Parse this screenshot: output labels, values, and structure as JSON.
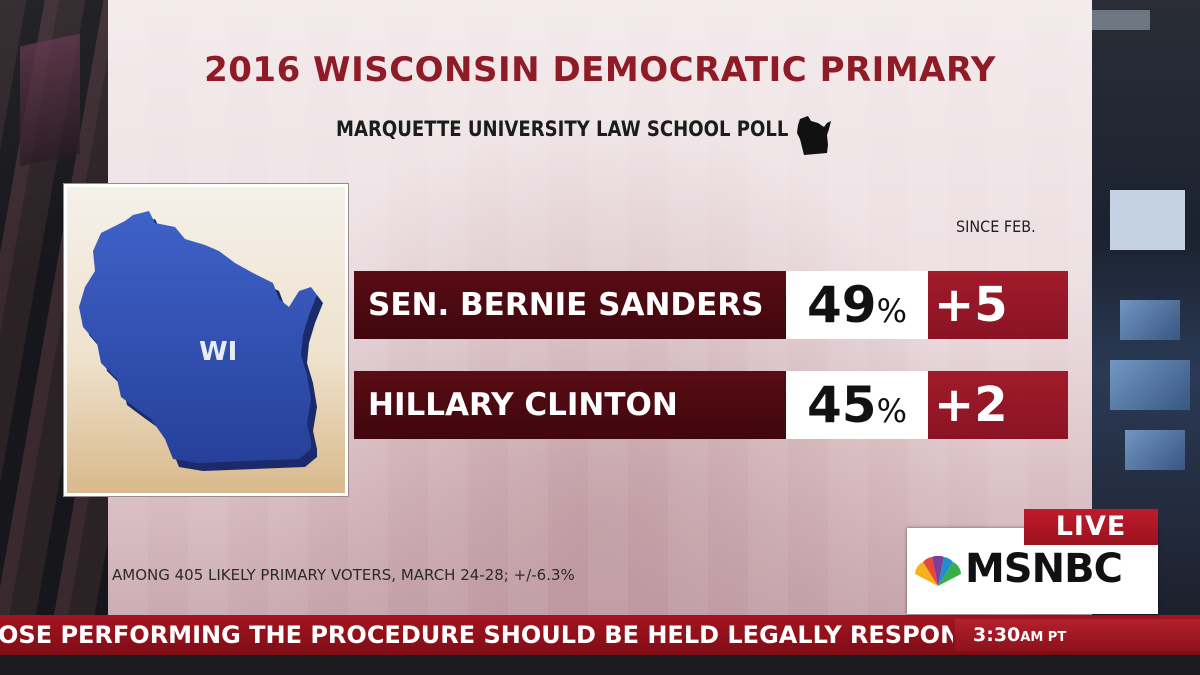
{
  "graphic": {
    "title": "2016 WISCONSIN DEMOCRATIC PRIMARY",
    "subtitle": "MARQUETTE UNIVERSITY LAW SCHOOL POLL",
    "map_label": "WI",
    "since_label": "SINCE FEB.",
    "candidates": [
      {
        "name": "SEN. BERNIE SANDERS",
        "pct": "49",
        "pct_sign": "%",
        "change": "+5"
      },
      {
        "name": "HILLARY CLINTON",
        "pct": "45",
        "pct_sign": "%",
        "change": "+2"
      }
    ],
    "footnote": "AMONG 405 LIKELY PRIMARY VOTERS, MARCH 24-28; +/-6.3%"
  },
  "ticker": {
    "text": "OSE PERFORMING THE PROCEDURE SHOULD BE HELD LEGALLY RESPONSIBL",
    "time": "3:30",
    "time_suffix": "AM PT"
  },
  "bug": {
    "live": "LIVE",
    "network": "MSNBC"
  },
  "colors": {
    "title_red": "#8e1b26",
    "name_bar": "#4e0a11",
    "change_bar": "#9a1826",
    "ticker_red": "#9a121c",
    "map_blue": "#2f4fb5"
  },
  "icons": [
    "wisconsin-silhouette-icon",
    "wisconsin-map-icon",
    "nbc-peacock-icon"
  ]
}
